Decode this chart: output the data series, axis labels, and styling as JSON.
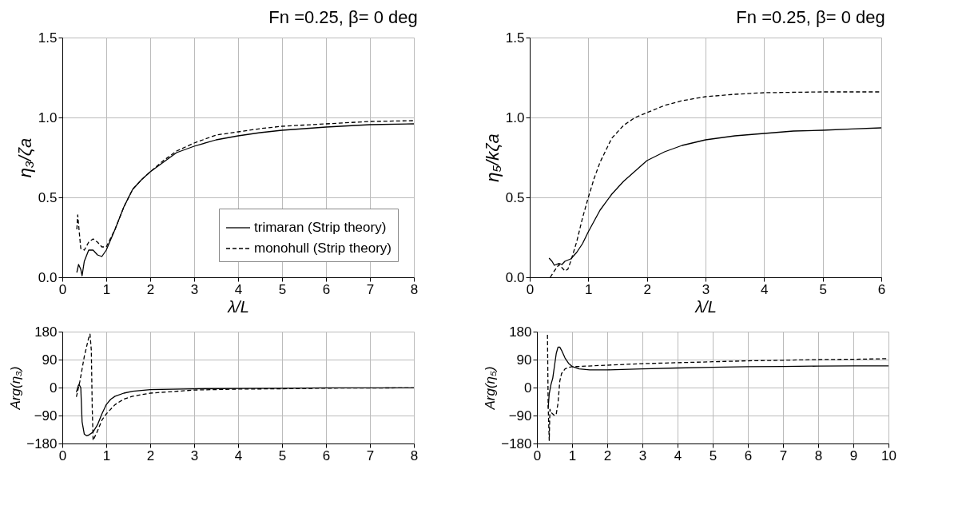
{
  "chart_data": [
    {
      "type": "line",
      "title": "Fn =0.25, β= 0 deg",
      "xlabel": "λ/L",
      "ylabel": "η₃/ζa",
      "xlim": [
        0,
        8
      ],
      "ylim": [
        0,
        1.5
      ],
      "xticks": [
        0,
        1,
        2,
        3,
        4,
        5,
        6,
        7,
        8
      ],
      "yticks": [
        {
          "value": 0,
          "label": "0.0"
        },
        {
          "value": 0.5,
          "label": "0.5"
        },
        {
          "value": 1,
          "label": "1.0"
        },
        {
          "value": 1.5,
          "label": "1.5"
        }
      ],
      "grid": true,
      "legend": "bottom right",
      "series": [
        {
          "name": "trimaran (Strip theory)",
          "color": "#000000",
          "line_style": "solid",
          "x": [
            0.33,
            0.37,
            0.42,
            0.45,
            0.5,
            0.6,
            0.7,
            0.8,
            0.9,
            1.0,
            1.2,
            1.4,
            1.6,
            1.8,
            2.0,
            2.3,
            2.6,
            3.0,
            3.5,
            4.0,
            4.5,
            5,
            6,
            7,
            8
          ],
          "values": [
            0.03,
            0.08,
            0.05,
            0.01,
            0.1,
            0.17,
            0.17,
            0.14,
            0.13,
            0.17,
            0.3,
            0.44,
            0.55,
            0.61,
            0.66,
            0.72,
            0.78,
            0.82,
            0.86,
            0.885,
            0.905,
            0.92,
            0.94,
            0.955,
            0.96
          ]
        },
        {
          "name": "monohull (Strip theory)",
          "color": "#000000",
          "line_style": "dashed",
          "x": [
            0.33,
            0.35,
            0.38,
            0.42,
            0.45,
            0.5,
            0.6,
            0.7,
            0.8,
            0.9,
            1.0,
            1.2,
            1.4,
            1.6,
            1.8,
            2.0,
            2.3,
            2.6,
            3.0,
            3.5,
            4.0,
            4.5,
            5,
            6,
            7,
            8
          ],
          "values": [
            0.3,
            0.39,
            0.3,
            0.18,
            0.18,
            0.17,
            0.22,
            0.24,
            0.22,
            0.19,
            0.19,
            0.3,
            0.44,
            0.55,
            0.61,
            0.66,
            0.73,
            0.79,
            0.84,
            0.89,
            0.91,
            0.93,
            0.945,
            0.96,
            0.975,
            0.98
          ]
        }
      ]
    },
    {
      "type": "line",
      "title": "Fn =0.25, β= 0 deg",
      "xlabel": "λ/L",
      "ylabel": "η₅/kζa",
      "xlim": [
        0,
        6
      ],
      "ylim": [
        0,
        1.5
      ],
      "xticks": [
        0,
        1,
        2,
        3,
        4,
        5,
        6
      ],
      "yticks": [
        {
          "value": 0,
          "label": "0.0"
        },
        {
          "value": 0.5,
          "label": "0.5"
        },
        {
          "value": 1,
          "label": "1.0"
        },
        {
          "value": 1.5,
          "label": "1.5"
        }
      ],
      "grid": true,
      "series": [
        {
          "color": "#000000",
          "line_style": "solid",
          "x": [
            0.33,
            0.38,
            0.42,
            0.5,
            0.55,
            0.6,
            0.7,
            0.8,
            0.9,
            1.0,
            1.2,
            1.4,
            1.6,
            1.8,
            2.0,
            2.3,
            2.6,
            3.0,
            3.5,
            4,
            4.5,
            5,
            5.5,
            6
          ],
          "values": [
            0.12,
            0.1,
            0.075,
            0.087,
            0.08,
            0.1,
            0.115,
            0.155,
            0.21,
            0.285,
            0.42,
            0.52,
            0.6,
            0.665,
            0.73,
            0.785,
            0.825,
            0.86,
            0.885,
            0.9,
            0.915,
            0.92,
            0.928,
            0.935
          ]
        },
        {
          "color": "#000000",
          "line_style": "dashed",
          "x": [
            0.35,
            0.42,
            0.5,
            0.55,
            0.6,
            0.65,
            0.7,
            0.8,
            0.9,
            1.0,
            1.1,
            1.2,
            1.4,
            1.6,
            1.8,
            2.0,
            2.3,
            2.6,
            3.0,
            3.5,
            4,
            5,
            6
          ],
          "values": [
            0.0,
            0.04,
            0.08,
            0.06,
            0.04,
            0.05,
            0.1,
            0.22,
            0.37,
            0.5,
            0.62,
            0.72,
            0.87,
            0.95,
            1.0,
            1.03,
            1.075,
            1.105,
            1.13,
            1.145,
            1.155,
            1.16,
            1.16
          ]
        }
      ]
    },
    {
      "type": "line",
      "ylabel": "Arg(η₃)",
      "xlim": [
        0,
        8
      ],
      "ylim": [
        -180,
        180
      ],
      "xticks": [
        0,
        1,
        2,
        3,
        4,
        5,
        6,
        7,
        8
      ],
      "yticks": [
        -180,
        -90,
        0,
        90,
        180
      ],
      "grid": true,
      "series": [
        {
          "color": "#000000",
          "line_style": "solid",
          "x": [
            0.32,
            0.36,
            0.38,
            0.42,
            0.45,
            0.5,
            0.55,
            0.6,
            0.7,
            0.8,
            0.9,
            1.0,
            1.1,
            1.2,
            1.4,
            1.6,
            2,
            3,
            4,
            5,
            6,
            8
          ],
          "values": [
            -15,
            5,
            10,
            0,
            -110,
            -150,
            -155,
            -153,
            -143,
            -120,
            -85,
            -55,
            -38,
            -28,
            -18,
            -12,
            -7,
            -4,
            -3,
            -2,
            -1,
            -1
          ]
        },
        {
          "color": "#000000",
          "line_style": "dashed",
          "x": [
            0.32,
            0.36,
            0.4,
            0.5,
            0.6,
            0.63,
            0.66,
            0.68,
            0.7,
            0.8,
            0.9,
            1.0,
            1.2,
            1.4,
            1.6,
            2,
            3,
            4,
            5,
            6,
            8
          ],
          "values": [
            -30,
            -5,
            20,
            100,
            160,
            172,
            120,
            -60,
            -170,
            -140,
            -105,
            -85,
            -55,
            -37,
            -28,
            -18,
            -8,
            -5,
            -4,
            -2,
            -1
          ]
        }
      ]
    },
    {
      "type": "line",
      "ylabel": "Arg(η₅)",
      "xlim": [
        0,
        10
      ],
      "ylim": [
        -180,
        180
      ],
      "xticks": [
        0,
        1,
        2,
        3,
        4,
        5,
        6,
        7,
        8,
        9,
        10
      ],
      "yticks": [
        -180,
        -90,
        0,
        90,
        180
      ],
      "grid": true,
      "series": [
        {
          "color": "#000000",
          "line_style": "solid",
          "x": [
            0.32,
            0.35,
            0.4,
            0.45,
            0.5,
            0.55,
            0.6,
            0.65,
            0.7,
            0.8,
            0.9,
            1.0,
            1.2,
            1.5,
            2,
            3,
            4,
            5,
            6,
            7,
            8,
            9,
            10
          ],
          "values": [
            -65,
            -20,
            10,
            30,
            70,
            110,
            130,
            130,
            120,
            95,
            78,
            68,
            60,
            57,
            57,
            60,
            63,
            65,
            67,
            68,
            69,
            70,
            70
          ]
        },
        {
          "color": "#000000",
          "line_style": "dashed",
          "x": [
            0.3,
            0.32,
            0.35,
            0.37,
            0.4,
            0.45,
            0.5,
            0.55,
            0.6,
            0.65,
            0.7,
            0.8,
            0.9,
            1.0,
            1.2,
            2,
            3,
            4,
            5,
            6,
            7,
            8,
            9,
            10
          ],
          "values": [
            170,
            -60,
            -170,
            -70,
            -80,
            -85,
            -90,
            -85,
            -50,
            20,
            45,
            60,
            65,
            67,
            68,
            72,
            77,
            80,
            83,
            86,
            88,
            90,
            91,
            93
          ]
        }
      ]
    }
  ]
}
